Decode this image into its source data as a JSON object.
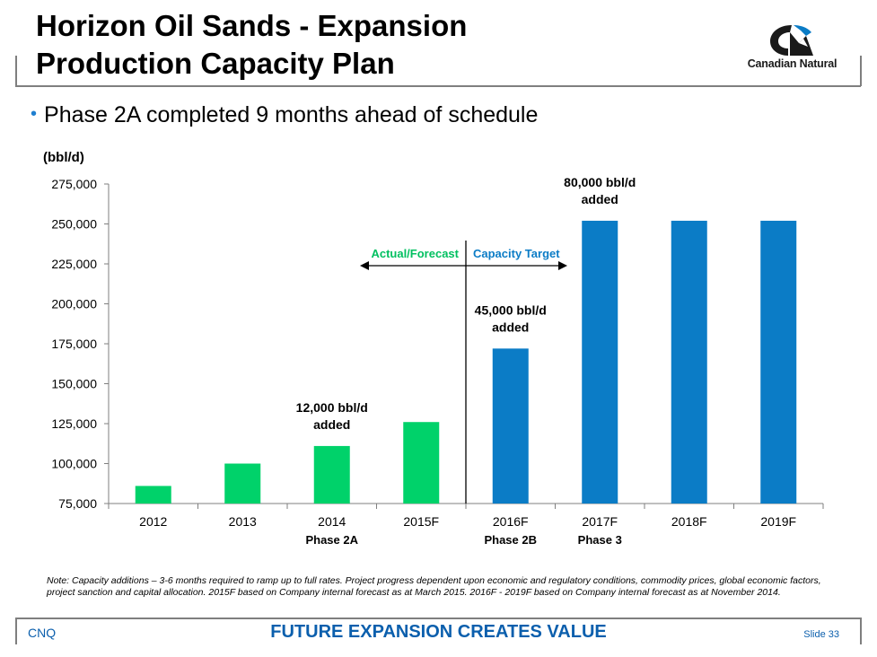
{
  "header": {
    "title_line1": "Horizon Oil Sands - Expansion",
    "title_line2": "Production Capacity Plan",
    "logo_text": "Canadian Natural"
  },
  "bullet": "Phase 2A completed 9 months ahead of schedule",
  "note": "Note: Capacity additions – 3-6 months required to ramp up to full rates. Project progress dependent upon economic and regulatory conditions, commodity prices, global economic factors, project sanction and capital allocation. 2015F based on Company internal forecast as at March 2015. 2016F - 2019F based on Company internal forecast as at November 2014.",
  "footer": {
    "left": "CNQ",
    "center": "FUTURE EXPANSION CREATES VALUE",
    "right": "Slide 33"
  },
  "colors": {
    "green": "#00d26a",
    "blue": "#0b7cc6",
    "accent": "#0b5fad"
  },
  "chart_data": {
    "type": "bar",
    "ylabel": "(bbl/d)",
    "ylim": [
      75000,
      275000
    ],
    "yticks": [
      75000,
      100000,
      125000,
      150000,
      175000,
      200000,
      225000,
      250000,
      275000
    ],
    "ytick_labels": [
      "75,000",
      "100,000",
      "125,000",
      "150,000",
      "175,000",
      "200,000",
      "225,000",
      "250,000",
      "275,000"
    ],
    "categories": [
      "2012",
      "2013",
      "2014",
      "2015F",
      "2016F",
      "2017F",
      "2018F",
      "2019F"
    ],
    "sublabels": [
      "",
      "",
      "Phase 2A",
      "",
      "Phase 2B",
      "Phase 3",
      "",
      ""
    ],
    "values": [
      86000,
      100000,
      111000,
      126000,
      172000,
      252000,
      252000,
      252000
    ],
    "bar_colors": [
      "green",
      "green",
      "green",
      "green",
      "blue",
      "blue",
      "blue",
      "blue"
    ],
    "annotations": [
      {
        "category": "2014",
        "line1": "12,000 bbl/d",
        "line2": "added"
      },
      {
        "category": "2016F",
        "line1": "45,000 bbl/d",
        "line2": "added"
      },
      {
        "category": "2017F",
        "line1": "80,000 bbl/d",
        "line2": "added"
      }
    ],
    "divider_label_left": "Actual/Forecast",
    "divider_label_right": "Capacity Target"
  }
}
